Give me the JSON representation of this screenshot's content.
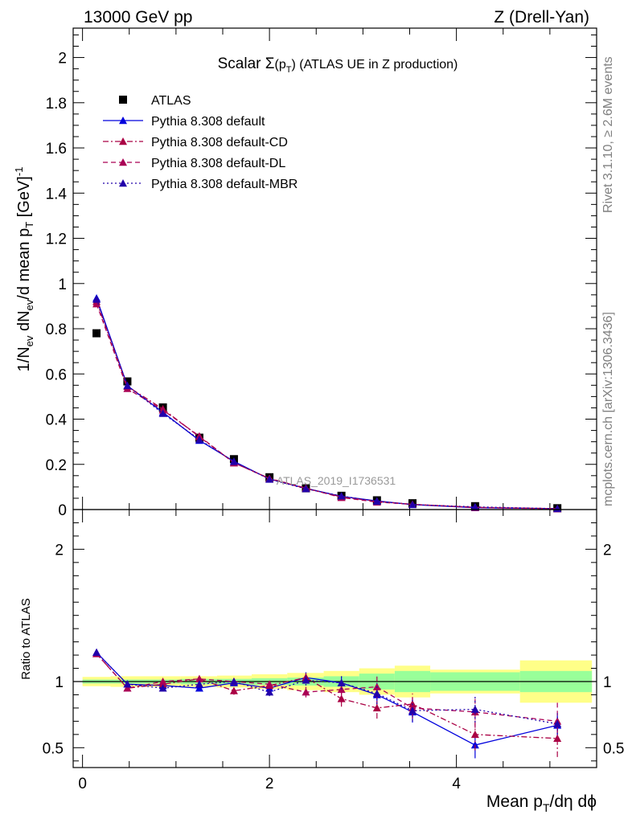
{
  "header": {
    "energy": "13000 GeV pp",
    "process": "Z (Drell-Yan)"
  },
  "side_labels": {
    "rivet_a": "Rivet 3.1.10, ",
    "rivet_ge": "≥",
    "rivet_b": " 2.6M events",
    "mcplots": "mcplots.cern.ch [arXiv:1306.3436]"
  },
  "colors": {
    "data": "#000000",
    "default": "#0000dd",
    "cd": "#aa0044",
    "dl": "#aa0055",
    "mbr": "#2200aa",
    "band_inner": "#99ff99",
    "band_outer": "#ffff88"
  },
  "chart_data": [
    {
      "type": "line",
      "title_prefix": "Scalar ",
      "title_sigma": "Σ",
      "title_p": "(p",
      "title_t": "T",
      "title_close": ")",
      "title_rest": " (ATLAS UE in Z production)",
      "ylabel_parts": [
        "1/N",
        "ev",
        " dN",
        "ev",
        "/d mean p",
        "T",
        " [GeV]",
        "-1"
      ],
      "watermark": "ATLAS_2019_I1736531",
      "xlim": [
        -0.1,
        5.5
      ],
      "ylim": [
        0,
        2.13
      ],
      "yticks": [
        0,
        0.2,
        0.4,
        0.6,
        0.8,
        1,
        1.2,
        1.4,
        1.6,
        1.8,
        2
      ],
      "ytick_labels": [
        "0",
        "0.2",
        "0.4",
        "0.6",
        "0.8",
        "1",
        "1.2",
        "1.4",
        "1.6",
        "1.8",
        "2"
      ],
      "x": [
        0.15,
        0.48,
        0.86,
        1.25,
        1.62,
        2.0,
        2.39,
        2.77,
        3.15,
        3.53,
        4.2,
        5.08
      ],
      "series": [
        {
          "name": "ATLAS",
          "key": "data",
          "marker": "square",
          "dash": "none",
          "values": [
            0.78,
            0.567,
            0.452,
            0.318,
            0.223,
            0.143,
            0.094,
            0.061,
            0.041,
            0.028,
            0.015,
            0.006
          ]
        },
        {
          "name": "Pythia 8.308 default",
          "key": "default",
          "marker": "triangle",
          "dash": "solid",
          "values": [
            0.935,
            0.548,
            0.43,
            0.306,
            0.213,
            0.135,
            0.094,
            0.058,
            0.038,
            0.022,
            0.008,
            0.004
          ]
        },
        {
          "name": "Pythia 8.308 default-CD",
          "key": "cd",
          "marker": "triangle",
          "dash": "dashdot",
          "values": [
            0.92,
            0.545,
            0.445,
            0.322,
            0.207,
            0.137,
            0.093,
            0.056,
            0.036,
            0.023,
            0.01,
            0.004
          ]
        },
        {
          "name": "Pythia 8.308 default-DL",
          "key": "dl",
          "marker": "triangle",
          "dash": "dashed",
          "values": [
            0.91,
            0.535,
            0.44,
            0.325,
            0.206,
            0.138,
            0.095,
            0.053,
            0.033,
            0.023,
            0.009,
            0.003
          ]
        },
        {
          "name": "Pythia 8.308 default-MBR",
          "key": "mbr",
          "marker": "triangle",
          "dash": "dotted",
          "values": [
            0.93,
            0.548,
            0.425,
            0.31,
            0.212,
            0.134,
            0.092,
            0.06,
            0.036,
            0.022,
            0.012,
            0.004
          ]
        }
      ]
    },
    {
      "type": "line",
      "ylabel": "Ratio to ATLAS",
      "xlabel_parts": [
        "Mean p",
        "T",
        "/dη dϕ"
      ],
      "xlim": [
        -0.1,
        5.5
      ],
      "ylim": [
        0.35,
        2.3
      ],
      "xticks": [
        0,
        2,
        4
      ],
      "xtick_labels": [
        "0",
        "2",
        "4"
      ],
      "yticks": [
        0.5,
        1,
        2
      ],
      "ytick_labels": [
        "0.5",
        "1",
        "2"
      ],
      "x": [
        0.15,
        0.48,
        0.86,
        1.25,
        1.62,
        2.0,
        2.39,
        2.77,
        3.15,
        3.53,
        4.2,
        5.08
      ],
      "bin_edges": [
        0.0,
        0.3,
        0.67,
        1.05,
        1.44,
        1.81,
        2.19,
        2.58,
        2.96,
        3.34,
        3.72,
        4.68,
        5.45
      ],
      "band_inner": [
        0.015,
        0.015,
        0.015,
        0.02,
        0.02,
        0.025,
        0.03,
        0.04,
        0.06,
        0.08,
        0.07,
        0.08
      ],
      "band_outer": [
        0.035,
        0.04,
        0.04,
        0.04,
        0.045,
        0.055,
        0.065,
        0.08,
        0.1,
        0.12,
        0.09,
        0.16
      ],
      "series": [
        {
          "name": "Pythia 8.308 default",
          "key": "default",
          "dash": "solid",
          "values": [
            1.22,
            0.98,
            0.97,
            0.95,
            0.99,
            0.95,
            1.03,
            0.99,
            0.9,
            0.77,
            0.52,
            0.67
          ],
          "errors": [
            0.02,
            0.02,
            0.02,
            0.02,
            0.02,
            0.03,
            0.04,
            0.05,
            0.08,
            0.08,
            0.1,
            0.08
          ]
        },
        {
          "name": "Pythia 8.308 default-CD",
          "key": "cd",
          "dash": "dashdot",
          "values": [
            1.21,
            0.95,
            0.98,
            1.02,
            0.93,
            0.97,
            1.03,
            0.87,
            0.8,
            0.83,
            0.6,
            0.57
          ],
          "errors": [
            0.02,
            0.02,
            0.02,
            0.03,
            0.03,
            0.03,
            0.04,
            0.06,
            0.08,
            0.08,
            0.12,
            0.14
          ]
        },
        {
          "name": "Pythia 8.308 default-DL",
          "key": "dl",
          "dash": "dashed",
          "values": [
            1.21,
            0.95,
            1.0,
            1.02,
            1.0,
            0.98,
            0.92,
            0.94,
            0.96,
            0.8,
            0.77,
            0.7
          ],
          "errors": [
            0.02,
            0.02,
            0.02,
            0.03,
            0.03,
            0.03,
            0.04,
            0.06,
            0.08,
            0.08,
            0.12,
            0.14
          ]
        },
        {
          "name": "Pythia 8.308 default-MBR",
          "key": "mbr",
          "dash": "dotted",
          "values": [
            1.22,
            0.98,
            0.95,
            0.98,
            1.0,
            0.92,
            1.01,
            0.99,
            0.91,
            0.78,
            0.79,
            0.68
          ],
          "errors": [
            0.02,
            0.02,
            0.02,
            0.02,
            0.02,
            0.03,
            0.04,
            0.05,
            0.08,
            0.08,
            0.1,
            0.08
          ]
        }
      ]
    }
  ]
}
